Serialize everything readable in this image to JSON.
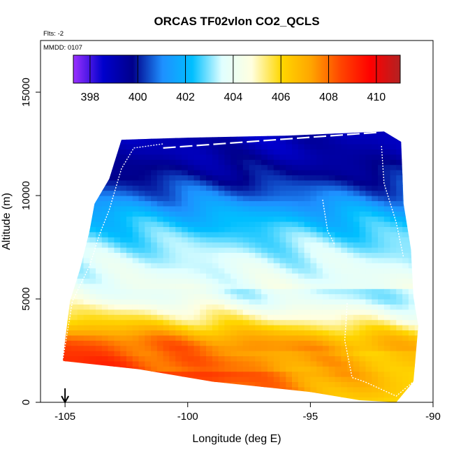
{
  "chart_data": {
    "type": "heatmap",
    "title": "ORCAS TF02vlon CO2_QCLS",
    "annotations": {
      "flights": "Flts: -2",
      "date": "MMDD: 0107"
    },
    "xlabel": "Longitude (deg E)",
    "ylabel": "Altitude (m)",
    "xlim": [
      -106,
      -90
    ],
    "ylim": [
      0,
      17500
    ],
    "x_ticks": [
      -105,
      -100,
      -95,
      -90
    ],
    "x_tick_labels": [
      "-105",
      "-100",
      "-95",
      "-90"
    ],
    "y_ticks": [
      0,
      5000,
      10000,
      15000
    ],
    "y_tick_labels": [
      "0",
      "5000",
      "10000",
      "15000"
    ],
    "colorbar": {
      "vmin": 397.3,
      "vmax": 411.0,
      "ticks": [
        398,
        400,
        402,
        404,
        406,
        408,
        410
      ],
      "tick_labels": [
        "398",
        "400",
        "402",
        "404",
        "406",
        "408",
        "410"
      ],
      "placement": "top-inside",
      "colors": [
        "#9b30ff",
        "#0000cd",
        "#00008b",
        "#1e90ff",
        "#00bfff",
        "#e0ffff",
        "#ffffe0",
        "#ffd700",
        "#ffa500",
        "#ff4500",
        "#ff0000",
        "#b22222"
      ]
    },
    "coverage": {
      "top_edge_alt": [
        [
          -102.7,
          12700
        ],
        [
          -100.0,
          12800
        ],
        [
          -96.0,
          12900
        ],
        [
          -92.0,
          13100
        ],
        [
          -91.3,
          12600
        ]
      ],
      "left_edge": [
        [
          -102.7,
          12700
        ],
        [
          -103.2,
          10800
        ],
        [
          -103.8,
          9600
        ],
        [
          -104.0,
          8300
        ],
        [
          -104.4,
          6400
        ],
        [
          -104.8,
          4900
        ],
        [
          -105.1,
          2000
        ]
      ],
      "right_edge": [
        [
          -91.3,
          12600
        ],
        [
          -91.2,
          9600
        ],
        [
          -90.9,
          7400
        ],
        [
          -90.8,
          5100
        ],
        [
          -90.6,
          3700
        ],
        [
          -90.8,
          1000
        ]
      ],
      "bottom_edge_alt": [
        [
          -105.1,
          2000
        ],
        [
          -102.0,
          1600
        ],
        [
          -99.0,
          1000
        ],
        [
          -95.0,
          500
        ],
        [
          -93.0,
          100
        ],
        [
          -91.5,
          0
        ],
        [
          -90.8,
          1000
        ]
      ]
    },
    "profile": {
      "altitudes": [
        2000,
        3000,
        4000,
        5000,
        6000,
        7000,
        8000,
        9000,
        10000,
        11000,
        12000,
        13000
      ],
      "center_values": [
        409.0,
        408.2,
        406.0,
        404.3,
        403.8,
        403.4,
        402.8,
        402.0,
        400.8,
        399.8,
        399.2,
        399.0
      ]
    },
    "flight_tracks": [
      {
        "name": "track-west-climb",
        "points": [
          [
            -105.1,
            2000
          ],
          [
            -104.7,
            4900
          ],
          [
            -104.0,
            6600
          ],
          [
            -103.6,
            8100
          ],
          [
            -103.2,
            9300
          ],
          [
            -102.7,
            11300
          ],
          [
            -102.2,
            12300
          ],
          [
            -101.0,
            12500
          ]
        ]
      },
      {
        "name": "track-top-leg",
        "points": [
          [
            -101.0,
            12300
          ],
          [
            -97.0,
            12650
          ],
          [
            -92.3,
            13050
          ]
        ]
      },
      {
        "name": "track-east-descent-1",
        "points": [
          [
            -94.5,
            9800
          ],
          [
            -94.3,
            8300
          ],
          [
            -94.0,
            7600
          ]
        ]
      },
      {
        "name": "track-east-descent-2",
        "points": [
          [
            -92.1,
            12400
          ],
          [
            -92.0,
            10600
          ],
          [
            -91.5,
            8700
          ],
          [
            -91.2,
            7000
          ]
        ]
      },
      {
        "name": "track-east-low",
        "points": [
          [
            -93.5,
            4800
          ],
          [
            -93.6,
            3000
          ],
          [
            -93.3,
            1200
          ],
          [
            -92.8,
            1000
          ],
          [
            -91.5,
            300
          ],
          [
            -90.8,
            1000
          ]
        ]
      }
    ],
    "marker": {
      "longitude": -105,
      "direction": "down"
    }
  }
}
